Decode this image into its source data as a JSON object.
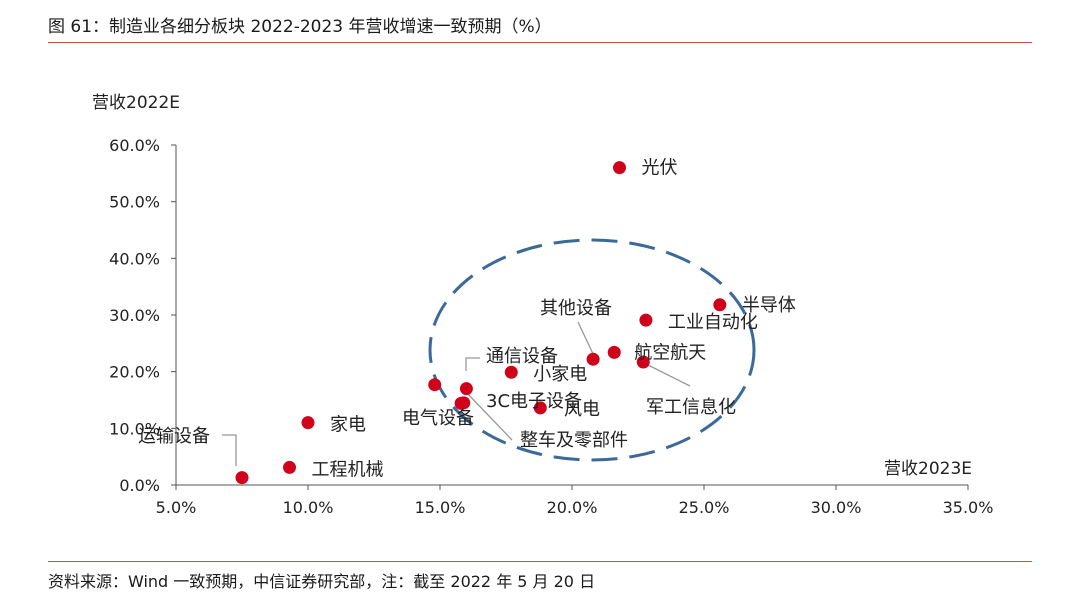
{
  "header": {
    "title": "图 61：制造业各细分板块 2022-2023 年营收增速一致预期（%）"
  },
  "footer": {
    "source": "资料来源：Wind 一致预期，中信证券研究部，注：截至 2022 年 5 月 20 日"
  },
  "chart_data": {
    "type": "scatter",
    "title": "",
    "xlabel": "营收2023E",
    "ylabel": "营收2022E",
    "xlim": [
      0.05,
      0.35
    ],
    "ylim": [
      0.0,
      0.6
    ],
    "xticks": [
      "5.0%",
      "10.0%",
      "15.0%",
      "20.0%",
      "25.0%",
      "30.0%",
      "35.0%"
    ],
    "yticks": [
      "0.0%",
      "10.0%",
      "20.0%",
      "30.0%",
      "40.0%",
      "50.0%",
      "60.0%"
    ],
    "marker_color": "#d0021b",
    "ellipse_color": "#3b6a9a",
    "points": [
      {
        "label": "光伏",
        "x": 0.218,
        "y": 0.56
      },
      {
        "label": "半导体",
        "x": 0.256,
        "y": 0.318
      },
      {
        "label": "工业自动化",
        "x": 0.228,
        "y": 0.291
      },
      {
        "label": "其他设备",
        "x": 0.208,
        "y": 0.222
      },
      {
        "label": "航空航天",
        "x": 0.216,
        "y": 0.234
      },
      {
        "label": "军工信息化",
        "x": 0.227,
        "y": 0.217
      },
      {
        "label": "小家电",
        "x": 0.177,
        "y": 0.199
      },
      {
        "label": "通信设备",
        "x": 0.148,
        "y": 0.177
      },
      {
        "label": "整车及零部件",
        "x": 0.16,
        "y": 0.17
      },
      {
        "label": "3C电子设备",
        "x": 0.159,
        "y": 0.145
      },
      {
        "label": "电气设备",
        "x": 0.158,
        "y": 0.144
      },
      {
        "label": "风电",
        "x": 0.188,
        "y": 0.136
      },
      {
        "label": "家电",
        "x": 0.1,
        "y": 0.11
      },
      {
        "label": "工程机械",
        "x": 0.093,
        "y": 0.031
      },
      {
        "label": "运输设备",
        "x": 0.075,
        "y": 0.013
      }
    ]
  }
}
